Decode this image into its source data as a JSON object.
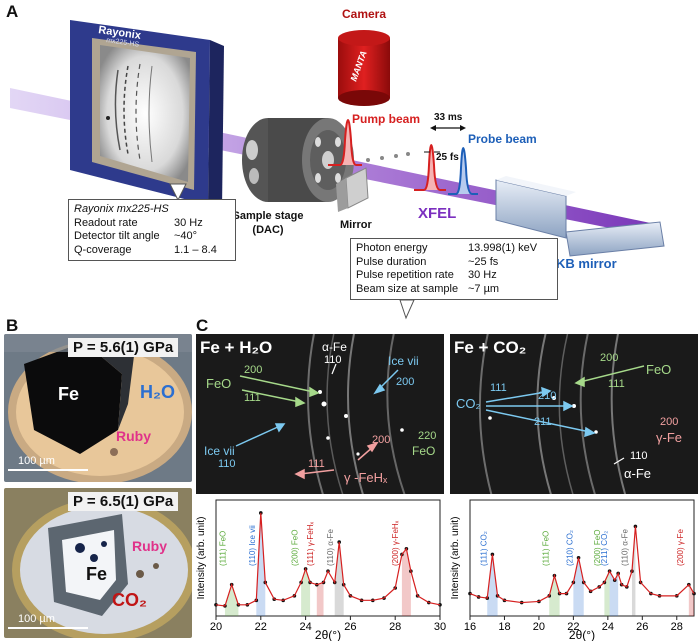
{
  "panels": {
    "a": "A",
    "b": "B",
    "c": "C"
  },
  "panel_a": {
    "camera": "Camera",
    "camera_brand": "MANTA",
    "detector_brand": "Rayonix",
    "detector_model": "mx225-HS",
    "pump_beam": "Pump beam",
    "probe_beam": "Probe beam",
    "delay": "33 ms",
    "pulse": "25 fs",
    "sample_stage": "Sample stage",
    "sample_stage_sub": "(DAC)",
    "mirror": "Mirror",
    "xfel": "XFEL",
    "kb_mirror": "KB mirror",
    "detector_box": {
      "title": "Rayonix mx225-HS",
      "rows": [
        {
          "k": "Readout rate",
          "v": "30 Hz"
        },
        {
          "k": "Detector tilt angle",
          "v": "~40°"
        },
        {
          "k": "Q-coverage",
          "v": "1.1 – 8.4"
        }
      ]
    },
    "beam_box": {
      "rows": [
        {
          "k": "Photon energy",
          "v": "13.998(1) keV"
        },
        {
          "k": "Pulse duration",
          "v": "~25 fs"
        },
        {
          "k": "Pulse repetition rate",
          "v": "30 Hz"
        },
        {
          "k": "Beam size at sample",
          "v": "~7 µm"
        }
      ]
    }
  },
  "panel_b": {
    "top": {
      "pressure": "P = 5.6(1) GPa",
      "fe": "Fe",
      "h2o": "H₂O",
      "ruby": "Ruby",
      "scale": "100 µm"
    },
    "bottom": {
      "pressure": "P = 6.5(1) GPa",
      "fe": "Fe",
      "co2": "CO₂",
      "ruby": "Ruby",
      "scale": "100 µm"
    }
  },
  "panel_c": {
    "left_title": "Fe + H₂O",
    "right_title": "Fe + CO₂",
    "left_labels": {
      "afe": "α-Fe",
      "afe_idx": "110",
      "feo": "FeO",
      "feo_200": "200",
      "feo_111": "111",
      "icevii_top": "Ice vii",
      "icevii_top_idx": "200",
      "icevii_bot": "Ice vii",
      "icevii_bot_idx": "110",
      "g200": "200",
      "g111": "111",
      "gfehx": "γ -FeHₓ",
      "feo_right_idx": "220",
      "feo_right": "FeO"
    },
    "right_labels": {
      "feo": "FeO",
      "feo_200": "200",
      "feo_111": "111",
      "co2": "CO₂",
      "i111": "111",
      "i210": "210",
      "i211": "211",
      "gfe_idx": "200",
      "gfe": "γ-Fe",
      "afe_idx": "110",
      "afe": "α-Fe"
    },
    "ylabel": "Intensity (arb. unit)",
    "xlabel": "2θ(°)"
  },
  "colors": {
    "feo": "#5aaa3a",
    "ice": "#2b6fd1",
    "gamma": "#cc2222",
    "alpha": "#666666",
    "pump": "#d62020",
    "probe": "#1d5fb8",
    "xfel": "#7b2fbf",
    "co2_label": "#c01515",
    "ruby": "#e0328a"
  },
  "chart_data": [
    {
      "type": "line",
      "title": "Fe + H₂O",
      "xlabel": "2θ(°)",
      "ylabel": "Intensity (arb. unit)",
      "xlim": [
        20,
        30
      ],
      "xticks": [
        20,
        22,
        24,
        26,
        28,
        30
      ],
      "x": [
        20.0,
        20.4,
        20.7,
        21.0,
        21.4,
        21.8,
        22.0,
        22.2,
        22.6,
        23.0,
        23.5,
        23.8,
        24.0,
        24.2,
        24.5,
        24.8,
        25.0,
        25.3,
        25.5,
        25.7,
        26.0,
        26.5,
        27.0,
        27.5,
        28.0,
        28.3,
        28.5,
        28.7,
        29.0,
        29.5,
        30.0
      ],
      "y": [
        0.1,
        0.09,
        0.28,
        0.1,
        0.1,
        0.14,
        0.92,
        0.3,
        0.15,
        0.14,
        0.18,
        0.3,
        0.42,
        0.3,
        0.28,
        0.3,
        0.4,
        0.3,
        0.66,
        0.28,
        0.18,
        0.14,
        0.14,
        0.16,
        0.25,
        0.55,
        0.6,
        0.4,
        0.18,
        0.12,
        0.1
      ],
      "peaks": [
        {
          "x": 20.7,
          "label": "(111)",
          "name": "FeO",
          "phase": "feo"
        },
        {
          "x": 22.0,
          "label": "(110)",
          "name": "Ice vii",
          "phase": "ice"
        },
        {
          "x": 23.9,
          "label": "(200)",
          "name": "FeO",
          "phase": "feo"
        },
        {
          "x": 24.6,
          "label": "(111)",
          "name": "γ-FeHₓ",
          "phase": "gamma"
        },
        {
          "x": 25.5,
          "label": "(110)",
          "name": "α-Fe",
          "phase": "alpha"
        },
        {
          "x": 28.4,
          "label": "(200)",
          "name": "γ-FeHₓ",
          "phase": "gamma"
        }
      ]
    },
    {
      "type": "line",
      "title": "Fe + CO₂",
      "xlabel": "2θ(°)",
      "ylabel": "Intensity (arb. unit)",
      "xlim": [
        16,
        29
      ],
      "xticks": [
        16,
        18,
        20,
        22,
        24,
        26,
        28
      ],
      "x": [
        16.0,
        16.5,
        17.0,
        17.3,
        17.6,
        18.0,
        19.0,
        20.0,
        20.6,
        20.9,
        21.2,
        21.6,
        22.0,
        22.3,
        22.6,
        23.0,
        23.5,
        23.8,
        24.1,
        24.4,
        24.6,
        24.8,
        25.1,
        25.4,
        25.6,
        25.9,
        26.5,
        27.0,
        28.0,
        28.7,
        29.0
      ],
      "y": [
        0.2,
        0.17,
        0.16,
        0.55,
        0.18,
        0.14,
        0.12,
        0.13,
        0.18,
        0.36,
        0.2,
        0.2,
        0.3,
        0.52,
        0.3,
        0.22,
        0.26,
        0.3,
        0.4,
        0.32,
        0.38,
        0.28,
        0.26,
        0.4,
        0.8,
        0.3,
        0.2,
        0.18,
        0.18,
        0.28,
        0.2
      ],
      "peaks": [
        {
          "x": 17.3,
          "label": "(111)",
          "name": "CO₂",
          "phase": "ice"
        },
        {
          "x": 20.9,
          "label": "(111)",
          "name": "FeO",
          "phase": "feo"
        },
        {
          "x": 22.3,
          "label": "(210)",
          "name": "CO₂",
          "phase": "ice"
        },
        {
          "x": 23.9,
          "label": "(200)",
          "name": "FeO",
          "phase": "feo"
        },
        {
          "x": 24.3,
          "label": "(211)",
          "name": "CO₂",
          "phase": "ice"
        },
        {
          "x": 25.5,
          "label": "(110)",
          "name": "α-Fe",
          "phase": "alpha"
        },
        {
          "x": 28.7,
          "label": "(200)",
          "name": "γ-Fe",
          "phase": "gamma"
        }
      ]
    }
  ]
}
